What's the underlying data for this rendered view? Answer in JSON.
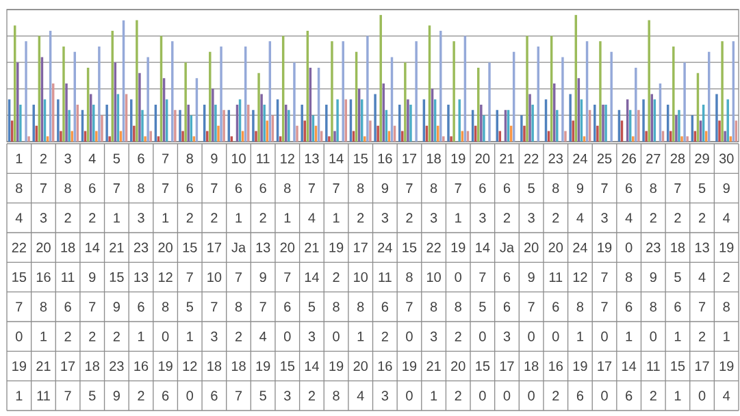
{
  "chart_data": {
    "type": "bar",
    "categories": [
      "1",
      "2",
      "3",
      "4",
      "5",
      "6",
      "7",
      "8",
      "9",
      "10",
      "11",
      "12",
      "13",
      "14",
      "15",
      "16",
      "17",
      "18",
      "19",
      "20",
      "21",
      "22",
      "23",
      "24",
      "25",
      "26",
      "27",
      "28",
      "29",
      "30"
    ],
    "series": [
      {
        "color": "#4f81bd",
        "values": [
          8,
          7,
          8,
          6,
          7,
          8,
          7,
          6,
          7,
          6,
          6,
          8,
          7,
          7,
          8,
          9,
          7,
          8,
          7,
          6,
          6,
          5,
          8,
          9,
          7,
          6,
          8,
          7,
          5,
          9
        ]
      },
      {
        "color": "#c0504d",
        "values": [
          4,
          3,
          2,
          2,
          1,
          3,
          1,
          2,
          2,
          1,
          2,
          1,
          4,
          1,
          2,
          3,
          2,
          3,
          1,
          3,
          2,
          3,
          2,
          4,
          3,
          4,
          2,
          2,
          2,
          4
        ]
      },
      {
        "color": "#9bbb59",
        "values": [
          22,
          20,
          18,
          14,
          21,
          23,
          20,
          15,
          17,
          null,
          13,
          20,
          21,
          19,
          17,
          24,
          15,
          22,
          19,
          14,
          null,
          20,
          20,
          24,
          19,
          0,
          23,
          18,
          13,
          19
        ],
        "value_labels": [
          "22",
          "20",
          "18",
          "14",
          "21",
          "23",
          "20",
          "15",
          "17",
          "Ja",
          "13",
          "20",
          "21",
          "19",
          "17",
          "24",
          "15",
          "22",
          "19",
          "14",
          "Ja",
          "20",
          "20",
          "24",
          "19",
          "0",
          "23",
          "18",
          "13",
          "19"
        ]
      },
      {
        "color": "#8064a2",
        "values": [
          15,
          16,
          11,
          9,
          15,
          13,
          12,
          7,
          10,
          7,
          9,
          7,
          14,
          2,
          10,
          11,
          8,
          10,
          0,
          7,
          6,
          9,
          11,
          12,
          7,
          8,
          9,
          5,
          4,
          2
        ]
      },
      {
        "color": "#4bacc6",
        "values": [
          7,
          8,
          6,
          7,
          9,
          6,
          8,
          5,
          7,
          8,
          7,
          6,
          5,
          8,
          8,
          6,
          7,
          8,
          8,
          5,
          6,
          7,
          6,
          8,
          7,
          6,
          8,
          6,
          7,
          8
        ]
      },
      {
        "color": "#f79646",
        "values": [
          0,
          1,
          2,
          2,
          2,
          1,
          0,
          1,
          3,
          2,
          4,
          0,
          3,
          0,
          1,
          2,
          0,
          3,
          2,
          0,
          3,
          0,
          0,
          1,
          0,
          1,
          0,
          1,
          2,
          1
        ]
      },
      {
        "color": "#95a9d9",
        "values": [
          19,
          21,
          17,
          18,
          23,
          16,
          19,
          12,
          18,
          18,
          19,
          15,
          14,
          19,
          20,
          16,
          19,
          21,
          20,
          15,
          17,
          18,
          16,
          19,
          17,
          14,
          11,
          15,
          17,
          19
        ]
      },
      {
        "color": "#d99694",
        "values": [
          1,
          11,
          7,
          5,
          9,
          2,
          6,
          0,
          6,
          7,
          5,
          3,
          2,
          8,
          4,
          3,
          0,
          1,
          2,
          0,
          0,
          0,
          2,
          6,
          0,
          6,
          2,
          1,
          0,
          4
        ]
      }
    ],
    "ylim": [
      0,
      25
    ],
    "yticks": [
      {
        "value": 0,
        "label": null
      },
      {
        "value": 5,
        "label": null
      },
      {
        "value": 10,
        "label": null
      },
      {
        "value": 15,
        "label": null
      },
      {
        "value": 20,
        "label": null
      },
      {
        "value": 25,
        "label": null
      }
    ],
    "grid": "y",
    "tick_labels": "x",
    "data_labels": true
  }
}
